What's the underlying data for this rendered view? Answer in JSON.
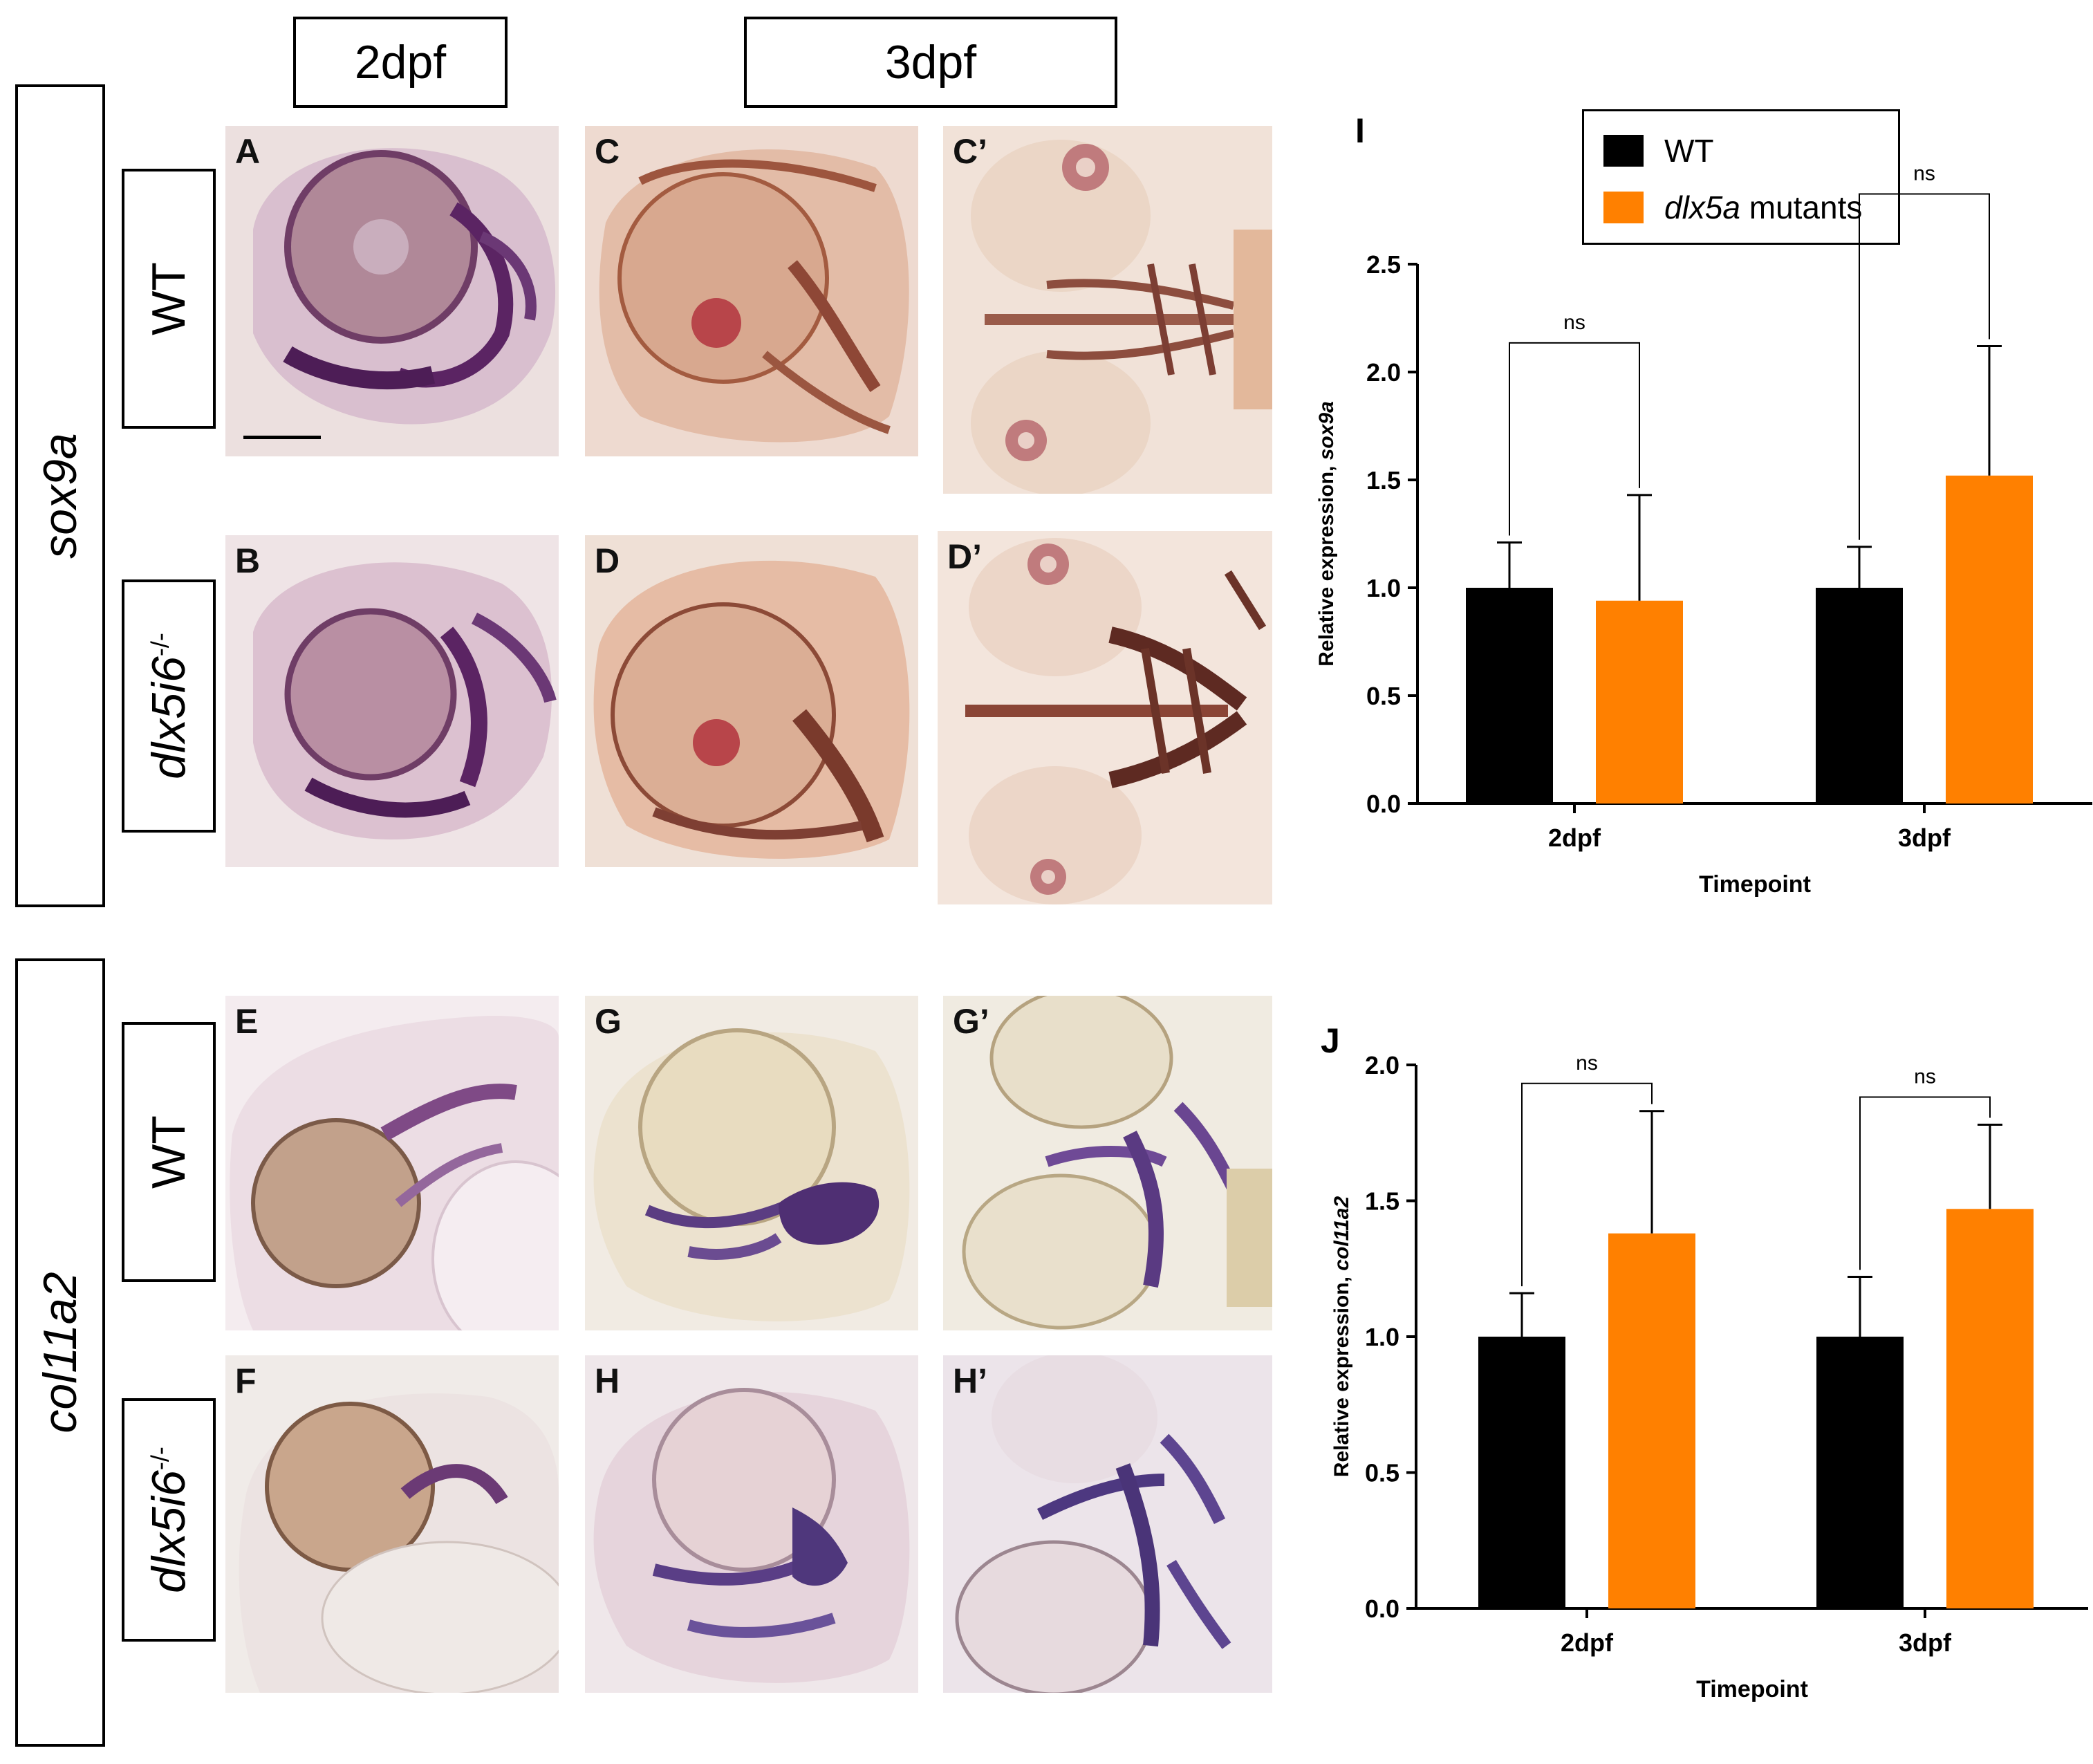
{
  "headers": {
    "col_2dpf": "2dpf",
    "col_3dpf": "3dpf"
  },
  "rows": {
    "sox9a": {
      "gene": "sox9a",
      "wt": "WT",
      "mutant_base": "dlx5i6",
      "mutant_sup": "-/-"
    },
    "col11a2": {
      "gene": "col11a2",
      "wt": "WT",
      "mutant_base": "dlx5i6",
      "mutant_sup": "-/-"
    }
  },
  "panel_labels": {
    "A": "A",
    "B": "B",
    "C": "C",
    "Cp": "C’",
    "D": "D",
    "Dp": "D’",
    "E": "E",
    "F": "F",
    "G": "G",
    "Gp": "G’",
    "H": "H",
    "Hp": "H’"
  },
  "legend": {
    "wt_label": "WT",
    "mut_italic": "dlx5a",
    "mut_rest": " mutants",
    "wt_color": "#000000",
    "mut_color": "#ff8000"
  },
  "chart_data": [
    {
      "id": "I",
      "letter": "I",
      "type": "bar",
      "categories": [
        "2dpf",
        "3dpf"
      ],
      "series": [
        {
          "name": "WT",
          "color": "#000000",
          "values": [
            1.0,
            1.0
          ],
          "errors": [
            0.21,
            0.19
          ]
        },
        {
          "name": "dlx5a mutants",
          "color": "#ff8000",
          "values": [
            0.94,
            1.52
          ],
          "errors": [
            0.49,
            0.6
          ]
        }
      ],
      "xlabel": "Timepoint",
      "ylabel_prefix": "Relative expression, ",
      "ylabel_gene": "sox9a",
      "ylim": [
        0,
        2.5
      ],
      "yticks": [
        "0.0",
        "0.5",
        "1.0",
        "1.5",
        "2.0",
        "2.5"
      ],
      "significance": [
        "ns",
        "ns"
      ]
    },
    {
      "id": "J",
      "letter": "J",
      "type": "bar",
      "categories": [
        "2dpf",
        "3dpf"
      ],
      "series": [
        {
          "name": "WT",
          "color": "#000000",
          "values": [
            1.0,
            1.0
          ],
          "errors": [
            0.16,
            0.22
          ]
        },
        {
          "name": "dlx5a mutants",
          "color": "#ff8000",
          "values": [
            1.38,
            1.47
          ],
          "errors": [
            0.45,
            0.31
          ]
        }
      ],
      "xlabel": "Timepoint",
      "ylabel_prefix": "Relative expression, ",
      "ylabel_gene": "col11a2",
      "ylim": [
        0,
        2.0
      ],
      "yticks": [
        "0.0",
        "0.5",
        "1.0",
        "1.5",
        "2.0"
      ],
      "significance": [
        "ns",
        "ns"
      ]
    }
  ]
}
